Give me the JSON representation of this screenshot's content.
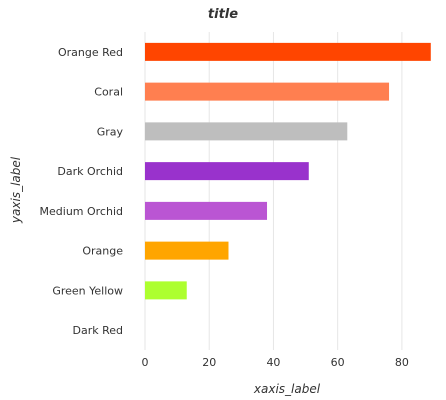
{
  "chart_data": {
    "type": "bar",
    "orientation": "horizontal",
    "title": "title",
    "xlabel": "xaxis_label",
    "ylabel": "yaxis_label",
    "categories": [
      "Dark Red",
      "Green Yellow",
      "Orange",
      "Medium Orchid",
      "Dark Orchid",
      "Gray",
      "Coral",
      "Orange Red"
    ],
    "values": [
      0,
      13,
      26,
      38,
      51,
      63,
      76,
      89
    ],
    "colors": [
      "#8b0000",
      "#adff2f",
      "#ffa500",
      "#ba55d3",
      "#9932cc",
      "#bebebe",
      "#ff7f50",
      "#ff4500"
    ],
    "xlim": [
      0,
      90
    ],
    "xticks": [
      "0",
      "20",
      "40",
      "60",
      "80"
    ],
    "grid": true,
    "legend": "none"
  }
}
